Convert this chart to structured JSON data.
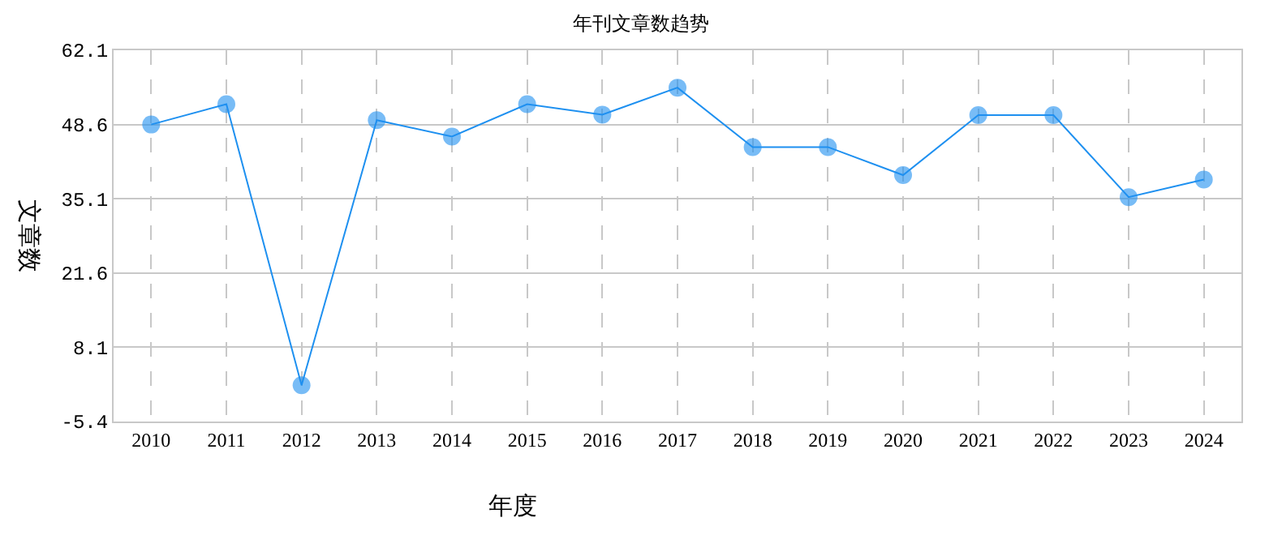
{
  "chart_data": {
    "type": "line",
    "title": "年刊文章数趋势",
    "xlabel": "年度",
    "ylabel": "文章数",
    "categories": [
      "2010",
      "2011",
      "2012",
      "2013",
      "2014",
      "2015",
      "2016",
      "2017",
      "2018",
      "2019",
      "2020",
      "2021",
      "2022",
      "2023",
      "2024"
    ],
    "series": [
      {
        "color": "#1e90f0",
        "values": [
          48.6,
          52.3,
          1.2,
          49.4,
          46.4,
          52.3,
          50.4,
          55.3,
          44.5,
          44.5,
          39.4,
          50.3,
          50.3,
          35.4,
          38.6
        ]
      }
    ],
    "ylim": [
      -5.4,
      62.1
    ],
    "yticks": [
      -5.4,
      8.1,
      21.6,
      35.1,
      48.6,
      62.1
    ],
    "grid": true,
    "marker": "circle",
    "line_style": "solid"
  }
}
